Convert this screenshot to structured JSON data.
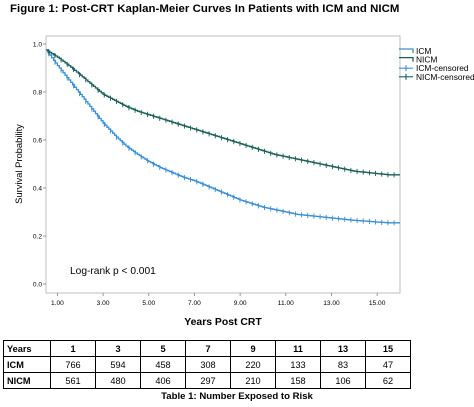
{
  "figure_title": "Figure 1: Post-CRT Kaplan-Meier Curves In Patients with ICM and NICM",
  "annotation": "Log-rank p < 0.001",
  "colors": {
    "ICM": "#3a8fd4",
    "NICM": "#1a5f5a",
    "frame": "#bfbfbf"
  },
  "chart_data": {
    "type": "line",
    "title": "",
    "xlabel": "Years Post CRT",
    "ylabel": "Survival Probability",
    "xlim": [
      0.5,
      16.0
    ],
    "ylim": [
      0.0,
      1.0
    ],
    "x_ticks": [
      1,
      3,
      5,
      7,
      9,
      11,
      13,
      15
    ],
    "x_tick_labels": [
      "1.00",
      "3.00",
      "5.00",
      "7.00",
      "9.00",
      "11.00",
      "13.00",
      "15.00"
    ],
    "y_ticks": [
      0,
      0.2,
      0.4,
      0.6,
      0.8,
      1.0
    ],
    "y_tick_labels": [
      "0.0",
      "0.2",
      "0.4",
      "0.6",
      "0.8",
      "1.0"
    ],
    "grid": false,
    "legend_position": "top-right",
    "legend": [
      "ICM",
      "NICM",
      "ICM-censored",
      "NICM-censored"
    ],
    "series": [
      {
        "name": "ICM",
        "x": [
          0.5,
          1,
          1.5,
          2,
          2.5,
          3,
          3.5,
          4,
          4.5,
          5,
          5.5,
          6,
          6.5,
          7,
          7.5,
          8,
          8.5,
          9,
          9.5,
          10,
          10.5,
          11,
          11.5,
          12,
          12.5,
          13,
          13.5,
          14,
          14.5,
          15,
          15.5,
          16
        ],
        "y": [
          0.975,
          0.91,
          0.85,
          0.79,
          0.73,
          0.67,
          0.62,
          0.575,
          0.54,
          0.51,
          0.485,
          0.465,
          0.445,
          0.43,
          0.41,
          0.39,
          0.37,
          0.35,
          0.335,
          0.32,
          0.31,
          0.3,
          0.29,
          0.285,
          0.28,
          0.275,
          0.27,
          0.265,
          0.262,
          0.258,
          0.255,
          0.255
        ]
      },
      {
        "name": "NICM",
        "x": [
          0.5,
          1,
          1.5,
          2,
          2.5,
          3,
          3.5,
          4,
          4.5,
          5,
          5.5,
          6,
          6.5,
          7,
          7.5,
          8,
          8.5,
          9,
          9.5,
          10,
          10.5,
          11,
          11.5,
          12,
          12.5,
          13,
          13.5,
          14,
          14.5,
          15,
          15.5,
          16
        ],
        "y": [
          0.975,
          0.945,
          0.91,
          0.87,
          0.83,
          0.79,
          0.765,
          0.74,
          0.72,
          0.705,
          0.69,
          0.675,
          0.66,
          0.645,
          0.63,
          0.615,
          0.6,
          0.585,
          0.57,
          0.555,
          0.54,
          0.53,
          0.52,
          0.51,
          0.5,
          0.49,
          0.48,
          0.47,
          0.465,
          0.46,
          0.455,
          0.455
        ]
      }
    ]
  },
  "risk_table": {
    "header_label": "Years",
    "years": [
      "1",
      "3",
      "5",
      "7",
      "9",
      "11",
      "13",
      "15"
    ],
    "rows": [
      {
        "label": "ICM",
        "values": [
          "766",
          "594",
          "458",
          "308",
          "220",
          "133",
          "83",
          "47"
        ]
      },
      {
        "label": "NICM",
        "values": [
          "561",
          "480",
          "406",
          "297",
          "210",
          "158",
          "106",
          "62"
        ]
      }
    ],
    "caption": "Table 1: Number Exposed to Risk"
  }
}
